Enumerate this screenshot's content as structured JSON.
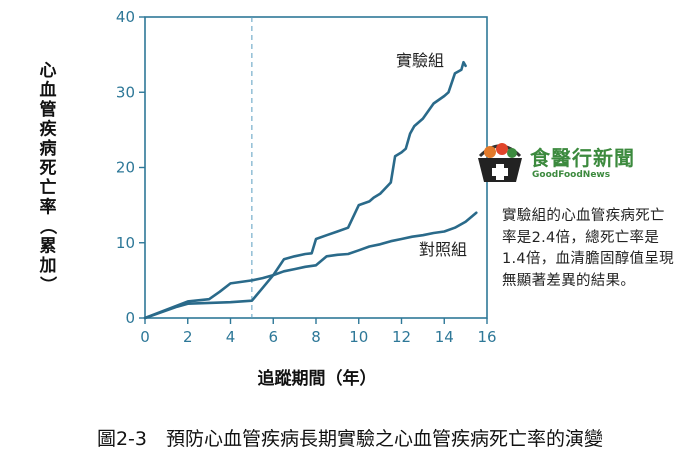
{
  "chart_data": {
    "type": "line",
    "title": "",
    "caption": "圖2-3　預防心血管疾病長期實驗之心血管疾病死亡率的演變",
    "xlabel": "追蹤期間（年）",
    "ylabel": "心血管疾病死亡率（累加）",
    "xlim": [
      0,
      16
    ],
    "ylim": [
      0,
      40
    ],
    "xticks": [
      0,
      2,
      4,
      6,
      8,
      10,
      12,
      14,
      16
    ],
    "yticks": [
      0,
      10,
      20,
      30,
      40
    ],
    "reference_line_x": 5,
    "grid": false,
    "series": [
      {
        "name": "實驗組",
        "x": [
          0,
          1.5,
          2,
          3,
          4,
          5,
          5.5,
          6,
          6.5,
          7,
          7.5,
          7.8,
          8,
          8.5,
          9,
          9.5,
          10,
          10.5,
          10.7,
          11,
          11.5,
          11.7,
          12,
          12.2,
          12.4,
          12.6,
          13,
          13.5,
          14,
          14.2,
          14.5,
          14.8,
          14.9,
          15
        ],
        "y": [
          0,
          1.5,
          1.9,
          2.0,
          2.1,
          2.3,
          4.0,
          5.7,
          7.8,
          8.2,
          8.5,
          8.6,
          10.5,
          11.0,
          11.5,
          12.0,
          15.0,
          15.5,
          16.0,
          16.5,
          18.0,
          21.5,
          22.0,
          22.5,
          24.5,
          25.5,
          26.5,
          28.5,
          29.5,
          30.0,
          32.5,
          33.0,
          34.0,
          33.5
        ]
      },
      {
        "name": "對照組",
        "x": [
          0,
          2,
          3,
          3.5,
          4,
          4.5,
          5,
          5.5,
          6,
          6.5,
          7,
          7.5,
          8,
          8.5,
          9,
          9.5,
          10,
          10.5,
          11,
          11.5,
          12,
          12.5,
          13,
          13.5,
          14,
          14.5,
          15,
          15.5
        ],
        "y": [
          0,
          2.2,
          2.5,
          3.5,
          4.6,
          4.8,
          5.0,
          5.3,
          5.7,
          6.2,
          6.5,
          6.8,
          7.0,
          8.2,
          8.4,
          8.5,
          9.0,
          9.5,
          9.8,
          10.2,
          10.5,
          10.8,
          11.0,
          11.3,
          11.5,
          12.0,
          12.8,
          14.0
        ]
      }
    ]
  },
  "annotation": "實驗組的心血管疾病死亡率是2.4倍，總死亡率是1.4倍，血清膽固醇值呈現無顯著差異的結果。",
  "logo": {
    "name": "食醫行新聞",
    "sub": "GoodFoodNews",
    "icons": [
      "basket-icon",
      "medical-cross-icon"
    ]
  },
  "colors": {
    "line": "#2a6a8a",
    "axis": "#2e7898",
    "reference_line": "#5a9ec0",
    "logo_green": "#3c8a3e",
    "logo_orange": "#e27a2a"
  }
}
